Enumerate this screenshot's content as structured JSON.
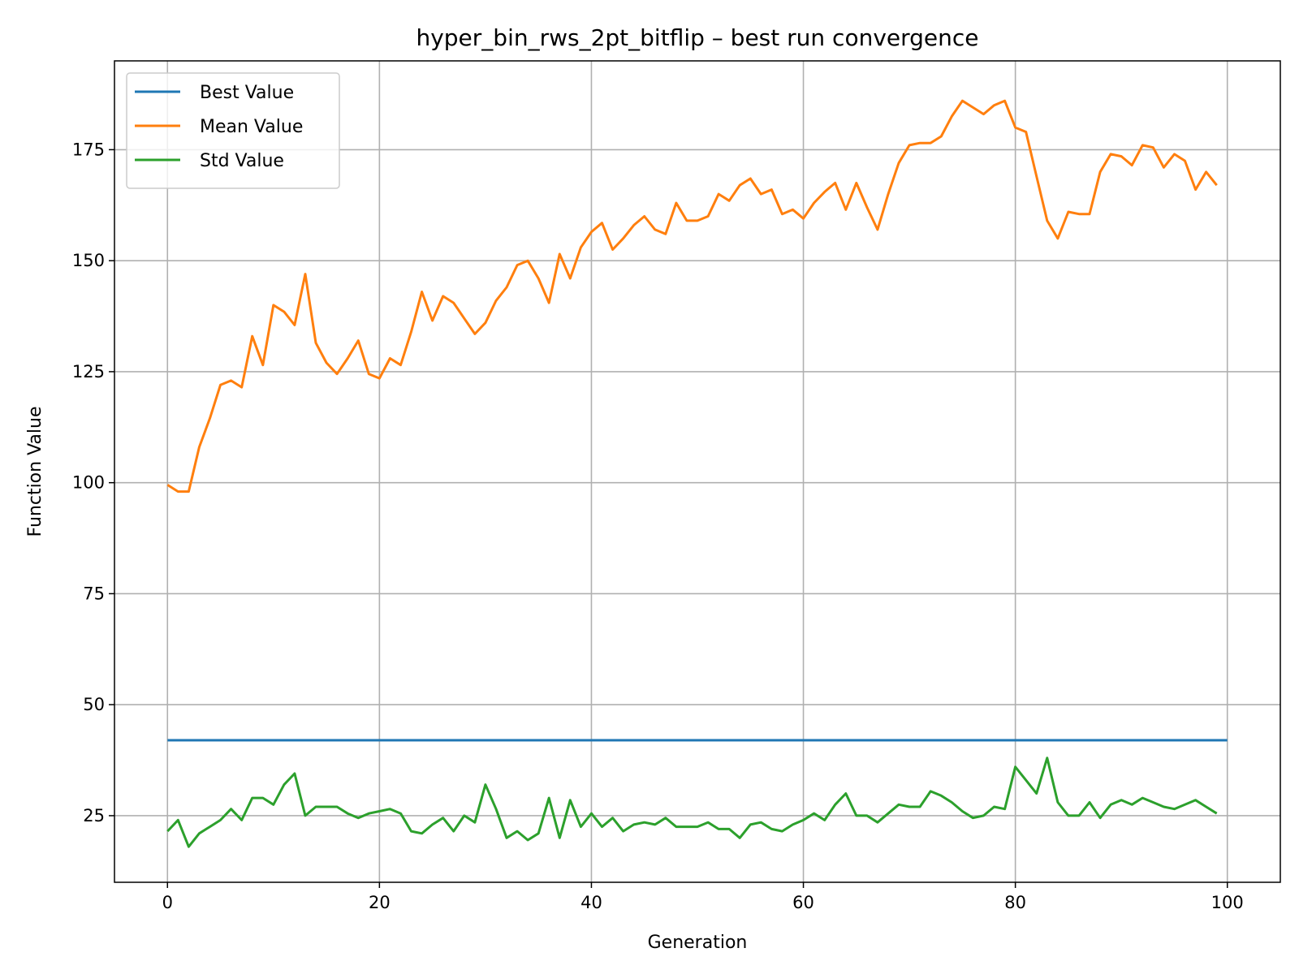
{
  "chart_data": {
    "type": "line",
    "title": "hyper_bin_rws_2pt_bitflip – best run convergence",
    "xlabel": "Generation",
    "ylabel": "Function Value",
    "xlim": [
      -5,
      105
    ],
    "ylim": [
      10,
      195
    ],
    "xticks": [
      0,
      20,
      40,
      60,
      80,
      100
    ],
    "yticks": [
      25,
      50,
      75,
      100,
      125,
      150,
      175
    ],
    "grid": true,
    "legend_position": "upper-left",
    "series": [
      {
        "name": "Best Value",
        "color": "#1f77b4",
        "x": [
          0,
          100
        ],
        "values": [
          42,
          42
        ]
      },
      {
        "name": "Mean Value",
        "color": "#ff7f0e",
        "x": [
          0,
          1,
          2,
          3,
          4,
          5,
          6,
          7,
          8,
          9,
          10,
          11,
          12,
          13,
          14,
          15,
          16,
          17,
          18,
          19,
          20,
          21,
          22,
          23,
          24,
          25,
          26,
          27,
          28,
          29,
          30,
          31,
          32,
          33,
          34,
          35,
          36,
          37,
          38,
          39,
          40,
          41,
          42,
          43,
          44,
          45,
          46,
          47,
          48,
          49,
          50,
          51,
          52,
          53,
          54,
          55,
          56,
          57,
          58,
          59,
          60,
          61,
          62,
          63,
          64,
          65,
          66,
          67,
          68,
          69,
          70,
          71,
          72,
          73,
          74,
          75,
          76,
          77,
          78,
          79,
          80,
          81,
          82,
          83,
          84,
          85,
          86,
          87,
          88,
          89,
          90,
          91,
          92,
          93,
          94,
          95,
          96,
          97,
          98,
          99
        ],
        "values": [
          99.5,
          98,
          98,
          108,
          114.5,
          122,
          123,
          121.5,
          133,
          126.5,
          140,
          138.5,
          135.5,
          147,
          131.5,
          127,
          124.5,
          128,
          132,
          124.5,
          123.5,
          128,
          126.5,
          134,
          143,
          136.5,
          142,
          140.5,
          137,
          133.5,
          136,
          141,
          144,
          149,
          150,
          146,
          140.5,
          151.5,
          146,
          153,
          156.5,
          158.5,
          152.5,
          155,
          158,
          160,
          157,
          156,
          163,
          159,
          159,
          160,
          165,
          163.5,
          167,
          168.5,
          165,
          166,
          160.5,
          161.5,
          159.5,
          163,
          165.5,
          167.5,
          161.5,
          167.5,
          162,
          157,
          165,
          172,
          176,
          176.5,
          176.5,
          178,
          182.5,
          186,
          184.5,
          183,
          185,
          186,
          180,
          179,
          169,
          159,
          155,
          161,
          160.5,
          160.5,
          170,
          174,
          173.5,
          171.5,
          176,
          175.5,
          171,
          174,
          172.5,
          166,
          170,
          167
        ]
      },
      {
        "name": "Std Value",
        "color": "#2ca02c",
        "x": [
          0,
          1,
          2,
          3,
          4,
          5,
          6,
          7,
          8,
          9,
          10,
          11,
          12,
          13,
          14,
          15,
          16,
          17,
          18,
          19,
          20,
          21,
          22,
          23,
          24,
          25,
          26,
          27,
          28,
          29,
          30,
          31,
          32,
          33,
          34,
          35,
          36,
          37,
          38,
          39,
          40,
          41,
          42,
          43,
          44,
          45,
          46,
          47,
          48,
          49,
          50,
          51,
          52,
          53,
          54,
          55,
          56,
          57,
          58,
          59,
          60,
          61,
          62,
          63,
          64,
          65,
          66,
          67,
          68,
          69,
          70,
          71,
          72,
          73,
          74,
          75,
          76,
          77,
          78,
          79,
          80,
          81,
          82,
          83,
          84,
          85,
          86,
          87,
          88,
          89,
          90,
          91,
          92,
          93,
          94,
          95,
          96,
          97,
          98,
          99
        ],
        "values": [
          21.5,
          24,
          18,
          21,
          22.5,
          24,
          26.5,
          24,
          29,
          29,
          27.5,
          32,
          34.5,
          25,
          27,
          27,
          27,
          25.5,
          24.5,
          25.5,
          26,
          26.5,
          25.5,
          21.5,
          21,
          23,
          24.5,
          21.5,
          25,
          23.5,
          32,
          26.5,
          20,
          21.5,
          19.5,
          21,
          29,
          20,
          28.5,
          22.5,
          25.5,
          22.5,
          24.5,
          21.5,
          23,
          23.5,
          23,
          24.5,
          22.5,
          22.5,
          22.5,
          23.5,
          22,
          22,
          20,
          23,
          23.5,
          22,
          21.5,
          23,
          24,
          25.5,
          24,
          27.5,
          30,
          25,
          25,
          23.5,
          25.5,
          27.5,
          27,
          27,
          30.5,
          29.5,
          28,
          26,
          24.5,
          25,
          27,
          26.5,
          36,
          33,
          30,
          38,
          28,
          25,
          25,
          28,
          24.5,
          27.5,
          28.5,
          27.5,
          29,
          28,
          27,
          26.5,
          27.5,
          28.5,
          27,
          25.5
        ]
      }
    ]
  }
}
